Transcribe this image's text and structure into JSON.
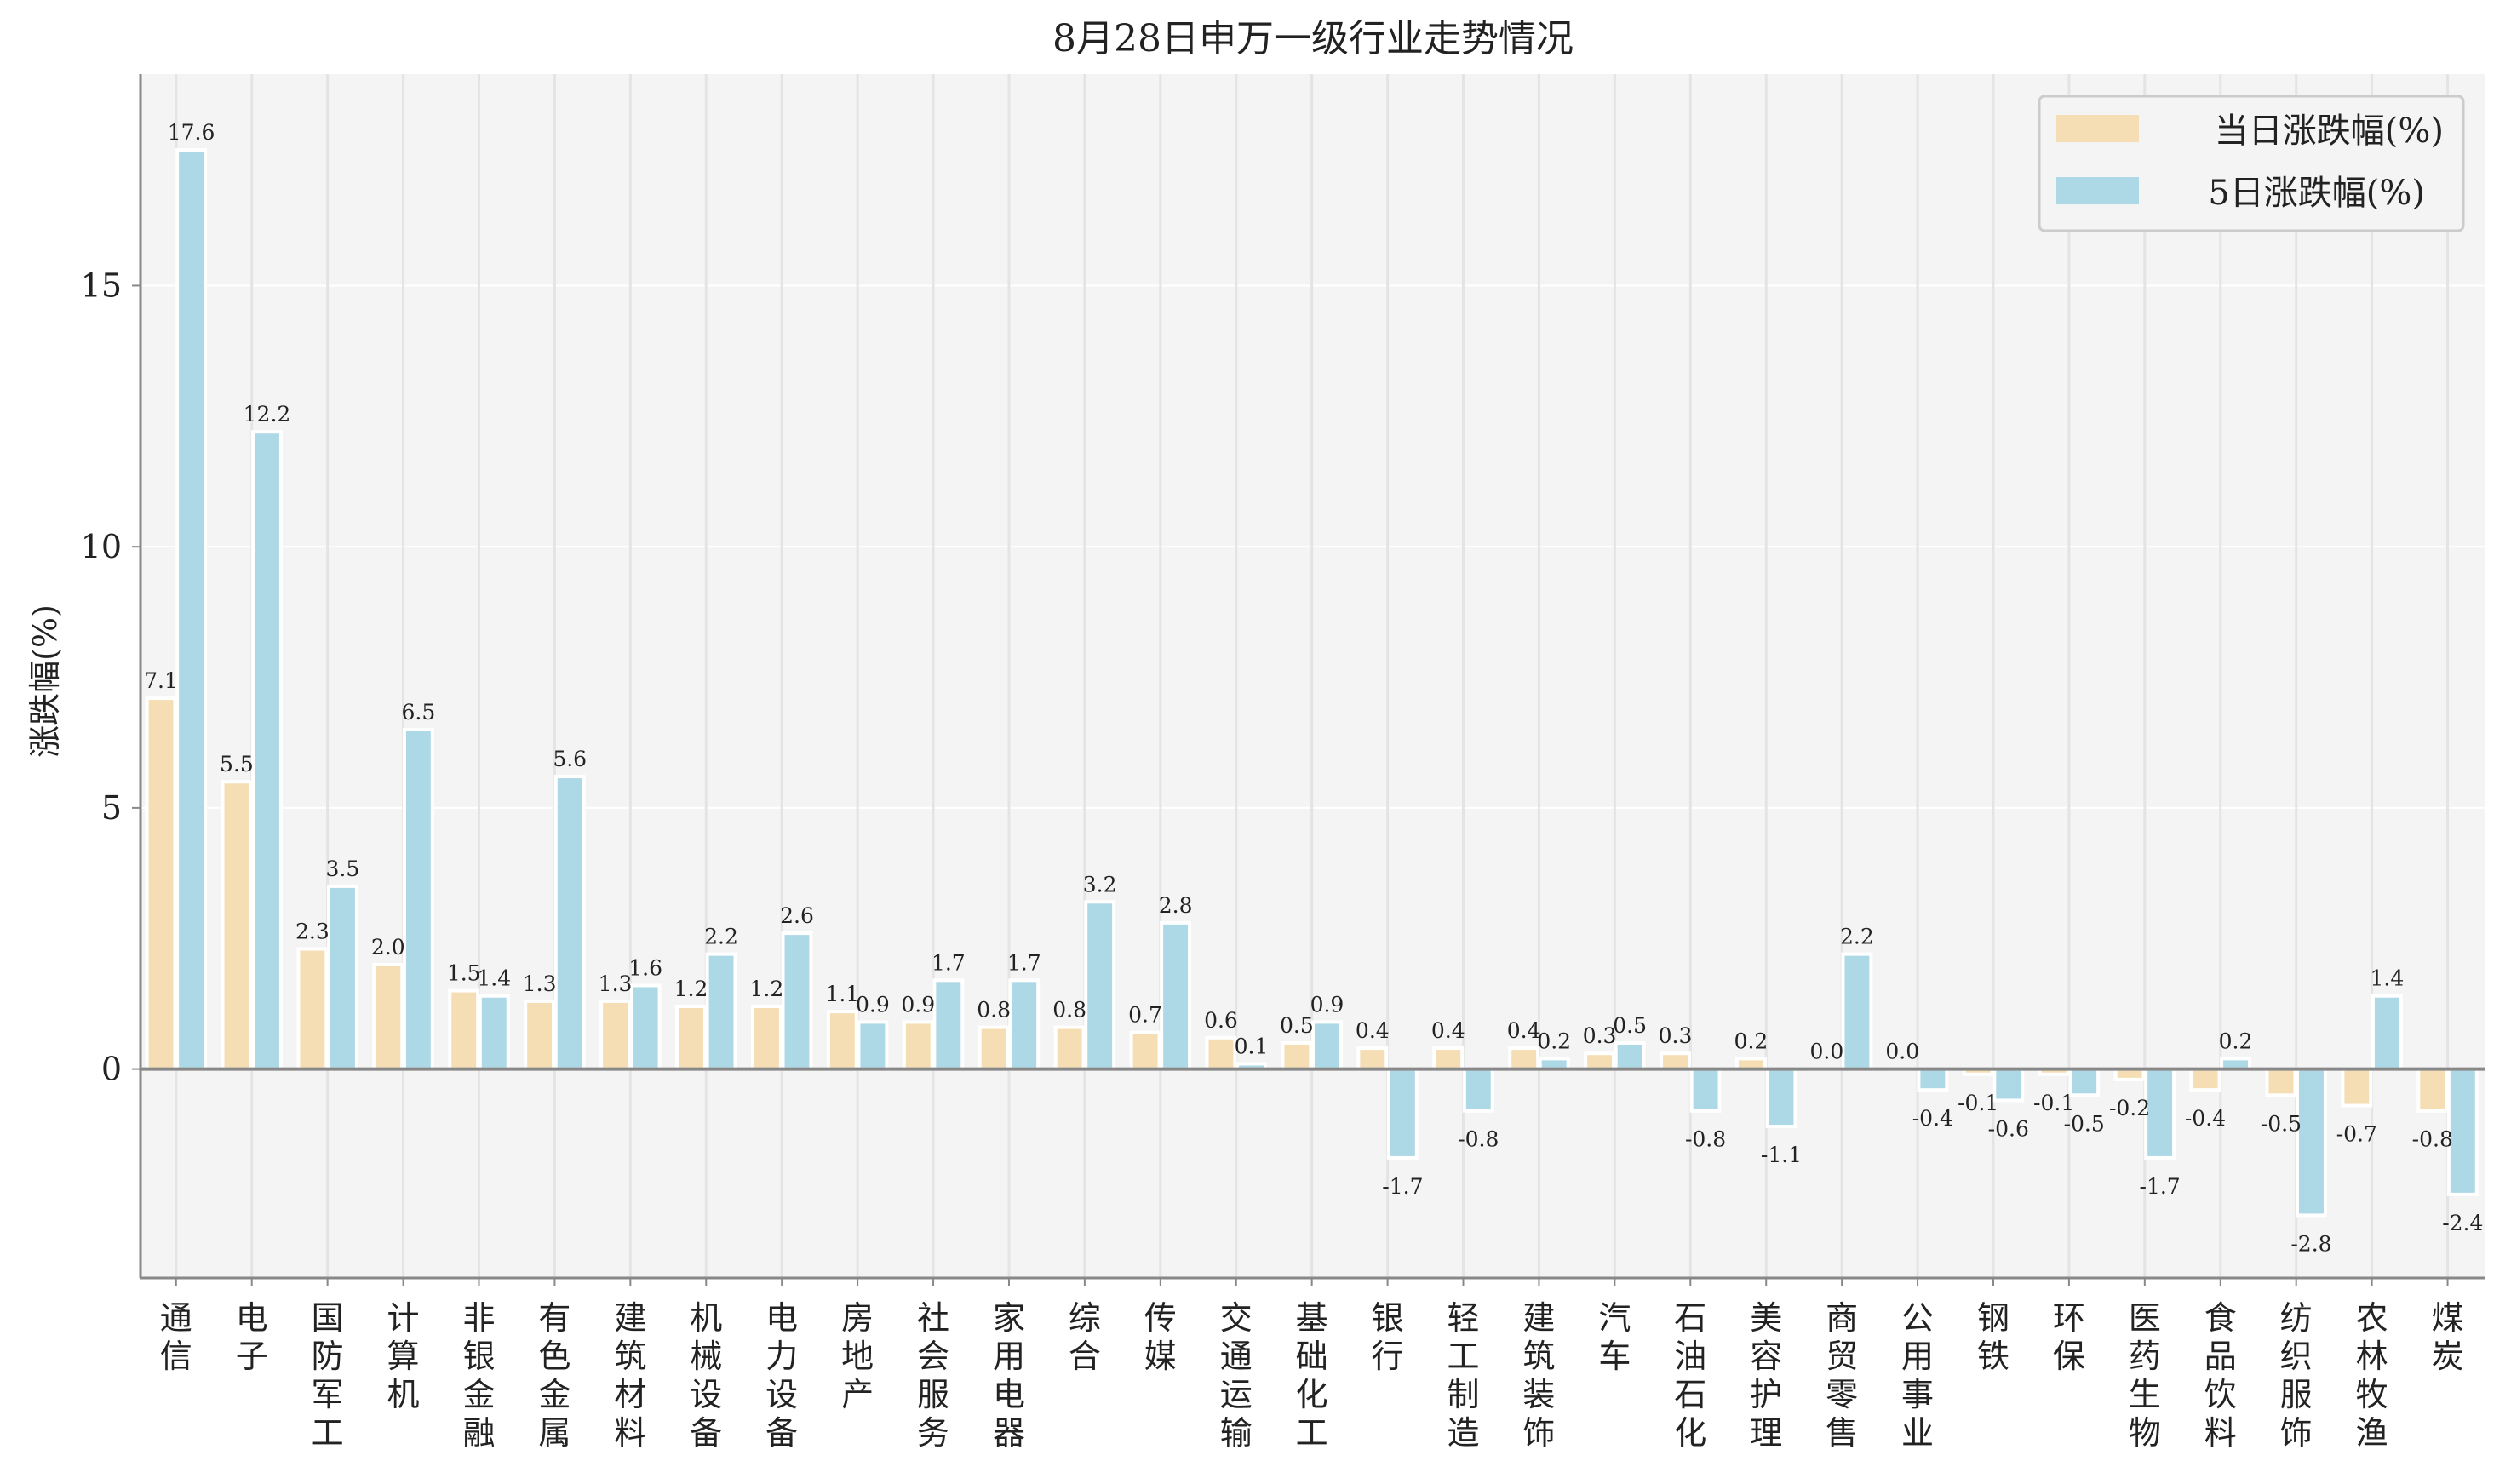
{
  "chart_data": {
    "type": "bar",
    "title": "8月28日申万一级行业走势情况",
    "xlabel": "",
    "ylabel": "涨跌幅(%)",
    "ylim": [
      -4.0,
      19.05
    ],
    "yticks": [
      0,
      5,
      10,
      15
    ],
    "grid": true,
    "legend_position": "top-right",
    "categories": [
      "通信",
      "电子",
      "国防军工",
      "计算机",
      "非银金融",
      "有色金属",
      "建筑材料",
      "机械设备",
      "电力设备",
      "房地产",
      "社会服务",
      "家用电器",
      "综合",
      "传媒",
      "交通运输",
      "基础化工",
      "银行",
      "轻工制造",
      "建筑装饰",
      "汽车",
      "石油石化",
      "美容护理",
      "商贸零售",
      "公用事业",
      "钢铁",
      "环保",
      "医药生物",
      "食品饮料",
      "纺织服饰",
      "农林牧渔",
      "煤炭"
    ],
    "series": [
      {
        "name": "当日涨跌幅(%)",
        "color": "#f5deb3",
        "values": [
          7.1,
          5.5,
          2.3,
          2.0,
          1.5,
          1.3,
          1.3,
          1.2,
          1.2,
          1.1,
          0.9,
          0.8,
          0.8,
          0.7,
          0.6,
          0.5,
          0.4,
          0.4,
          0.4,
          0.3,
          0.3,
          0.2,
          0.0,
          0.0,
          -0.1,
          -0.1,
          -0.2,
          -0.4,
          -0.5,
          -0.7,
          -0.8
        ]
      },
      {
        "name": "5日涨跌幅(%)",
        "color": "#add8e6",
        "values": [
          17.6,
          12.2,
          3.5,
          6.5,
          1.4,
          5.6,
          1.6,
          2.2,
          2.6,
          0.9,
          1.7,
          1.7,
          3.2,
          2.8,
          0.1,
          0.9,
          -1.7,
          -0.8,
          0.2,
          0.5,
          -0.8,
          -1.1,
          2.2,
          -0.4,
          -0.6,
          -0.5,
          -1.7,
          0.2,
          -2.8,
          1.4,
          -2.4
        ]
      }
    ]
  }
}
